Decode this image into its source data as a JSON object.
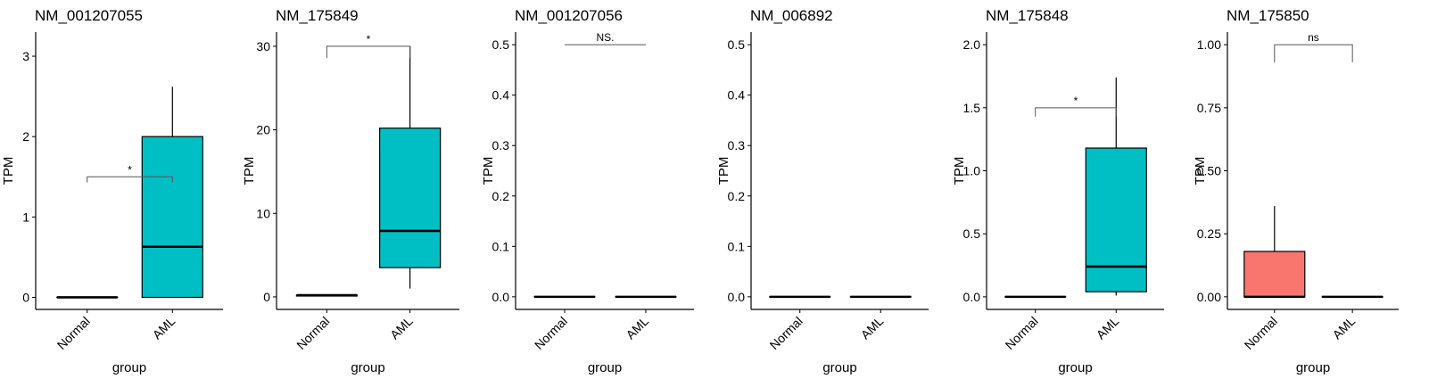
{
  "chart_data": [
    {
      "type": "box",
      "title": "NM_001207055",
      "xlabel": "group",
      "ylabel": "TPM",
      "categories": [
        "Normal",
        "AML"
      ],
      "ylim": [
        -0.15,
        3.3
      ],
      "yticks": [
        "0",
        "1",
        "2",
        "3"
      ],
      "ytick_values": [
        0,
        1,
        2,
        3
      ],
      "boxes": [
        {
          "group": "Normal",
          "min": 0,
          "q1": 0,
          "median": 0,
          "q3": 0,
          "max": 0,
          "color": "#F8766D"
        },
        {
          "group": "AML",
          "min": 0,
          "q1": 0,
          "median": 0.63,
          "q3": 2.0,
          "max": 2.62,
          "color": "#00BFC4"
        }
      ],
      "significance": {
        "label": "*",
        "y": 1.5,
        "tick_to": 1.43
      }
    },
    {
      "type": "box",
      "title": "NM_175849",
      "xlabel": "group",
      "ylabel": "TPM",
      "categories": [
        "Normal",
        "AML"
      ],
      "ylim": [
        -1.5,
        31.7
      ],
      "yticks": [
        "0",
        "10",
        "20",
        "30"
      ],
      "ytick_values": [
        0,
        10,
        20,
        30
      ],
      "boxes": [
        {
          "group": "Normal",
          "min": 0.1,
          "q1": 0.1,
          "median": 0.2,
          "q3": 0.2,
          "max": 0.2,
          "color": "#F8766D"
        },
        {
          "group": "AML",
          "min": 1.0,
          "q1": 3.5,
          "median": 7.9,
          "q3": 20.2,
          "max": 30.0,
          "color": "#00BFC4"
        }
      ],
      "significance": {
        "label": "*",
        "y": 30,
        "tick_to": 28.6
      }
    },
    {
      "type": "box",
      "title": "NM_001207056",
      "xlabel": "group",
      "ylabel": "TPM",
      "categories": [
        "Normal",
        "AML"
      ],
      "ylim": [
        -0.025,
        0.525
      ],
      "yticks": [
        "0.0",
        "0.1",
        "0.2",
        "0.3",
        "0.4",
        "0.5"
      ],
      "ytick_values": [
        0,
        0.1,
        0.2,
        0.3,
        0.4,
        0.5
      ],
      "boxes": [
        {
          "group": "Normal",
          "min": 0,
          "q1": 0,
          "median": 0,
          "q3": 0,
          "max": 0,
          "color": "#F8766D"
        },
        {
          "group": "AML",
          "min": 0,
          "q1": 0,
          "median": 0,
          "q3": 0,
          "max": 0,
          "color": "#00BFC4"
        }
      ],
      "significance": {
        "label": "NS.",
        "y": 0.5,
        "tick_to": 0.5
      }
    },
    {
      "type": "box",
      "title": "NM_006892",
      "xlabel": "group",
      "ylabel": "TPM",
      "categories": [
        "Normal",
        "AML"
      ],
      "ylim": [
        -0.025,
        0.525
      ],
      "yticks": [
        "0.0",
        "0.1",
        "0.2",
        "0.3",
        "0.4",
        "0.5"
      ],
      "ytick_values": [
        0,
        0.1,
        0.2,
        0.3,
        0.4,
        0.5
      ],
      "boxes": [
        {
          "group": "Normal",
          "min": 0,
          "q1": 0,
          "median": 0,
          "q3": 0,
          "max": 0,
          "color": "#F8766D"
        },
        {
          "group": "AML",
          "min": 0,
          "q1": 0,
          "median": 0,
          "q3": 0,
          "max": 0,
          "color": "#00BFC4"
        }
      ],
      "significance": null
    },
    {
      "type": "box",
      "title": "NM_175848",
      "xlabel": "group",
      "ylabel": "TPM",
      "categories": [
        "Normal",
        "AML"
      ],
      "ylim": [
        -0.1,
        2.1
      ],
      "yticks": [
        "0.0",
        "0.5",
        "1.0",
        "1.5",
        "2.0"
      ],
      "ytick_values": [
        0,
        0.5,
        1.0,
        1.5,
        2.0
      ],
      "boxes": [
        {
          "group": "Normal",
          "min": 0,
          "q1": 0,
          "median": 0,
          "q3": 0,
          "max": 0,
          "color": "#F8766D"
        },
        {
          "group": "AML",
          "min": 0.01,
          "q1": 0.04,
          "median": 0.24,
          "q3": 1.18,
          "max": 1.74,
          "color": "#00BFC4"
        }
      ],
      "significance": {
        "label": "*",
        "y": 1.5,
        "tick_to": 1.43
      }
    },
    {
      "type": "box",
      "title": "NM_175850",
      "xlabel": "group",
      "ylabel": "TPM",
      "categories": [
        "Normal",
        "AML"
      ],
      "ylim": [
        -0.05,
        1.05
      ],
      "yticks": [
        "0.00",
        "0.25",
        "0.50",
        "0.75",
        "1.00"
      ],
      "ytick_values": [
        0,
        0.25,
        0.5,
        0.75,
        1.0
      ],
      "boxes": [
        {
          "group": "Normal",
          "min": 0,
          "q1": 0,
          "median": 0,
          "q3": 0.18,
          "max": 0.36,
          "color": "#F8766D"
        },
        {
          "group": "AML",
          "min": 0,
          "q1": 0,
          "median": 0,
          "q3": 0,
          "max": 0,
          "color": "#00BFC4"
        }
      ],
      "significance": {
        "label": "ns",
        "y": 1.0,
        "tick_to": 0.93
      }
    }
  ]
}
